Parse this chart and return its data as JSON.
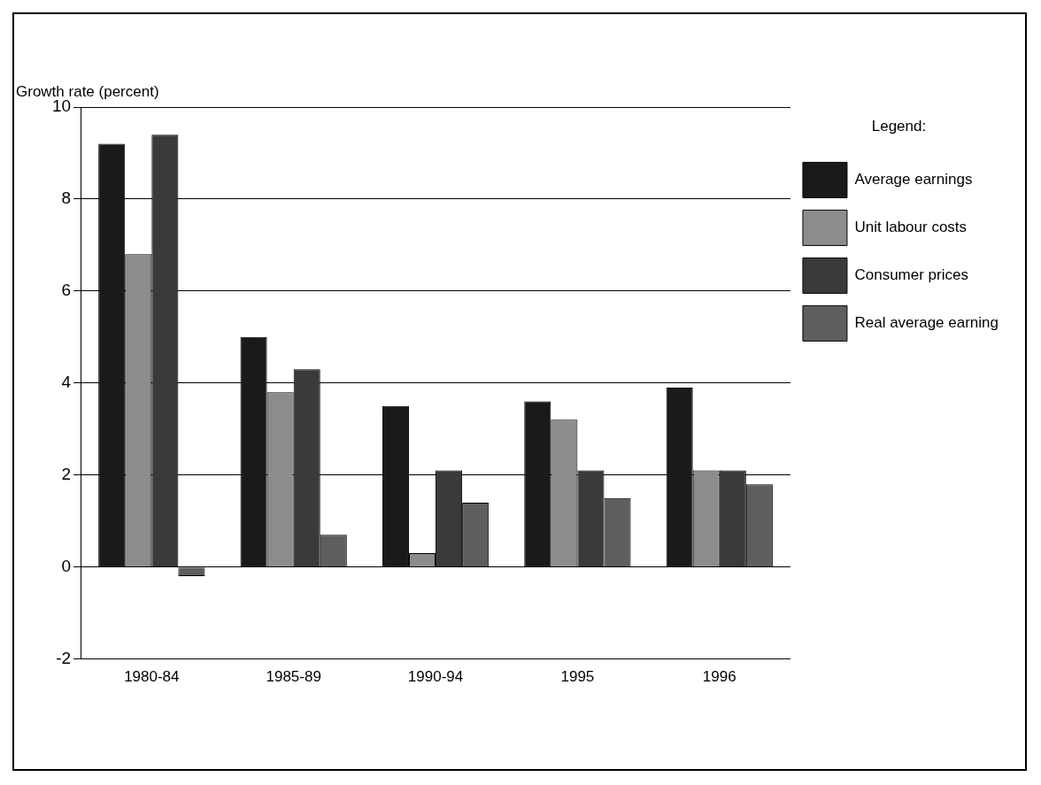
{
  "chart_data": {
    "type": "bar",
    "ylabel": "Growth rate (percent)",
    "legend_title": "Legend:",
    "categories": [
      "1980-84",
      "1985-89",
      "1990-94",
      "1995",
      "1996"
    ],
    "series": [
      {
        "name": "Average earnings",
        "color": "#1a1a1a",
        "values": [
          9.2,
          5.0,
          3.5,
          3.6,
          3.9
        ]
      },
      {
        "name": "Unit labour costs",
        "color": "#8c8c8c",
        "values": [
          6.8,
          3.8,
          0.3,
          3.2,
          2.1
        ]
      },
      {
        "name": "Consumer prices",
        "color": "#3a3a3a",
        "values": [
          9.4,
          4.3,
          2.1,
          2.1,
          2.1
        ]
      },
      {
        "name": "Real average earning",
        "color": "#5e5e5e",
        "values": [
          -0.2,
          0.7,
          1.4,
          1.5,
          1.8
        ]
      }
    ],
    "ylim": [
      -2,
      10
    ],
    "yticks": [
      -2,
      0,
      2,
      4,
      6,
      8,
      10
    ],
    "grid": "y",
    "legend": "right"
  }
}
